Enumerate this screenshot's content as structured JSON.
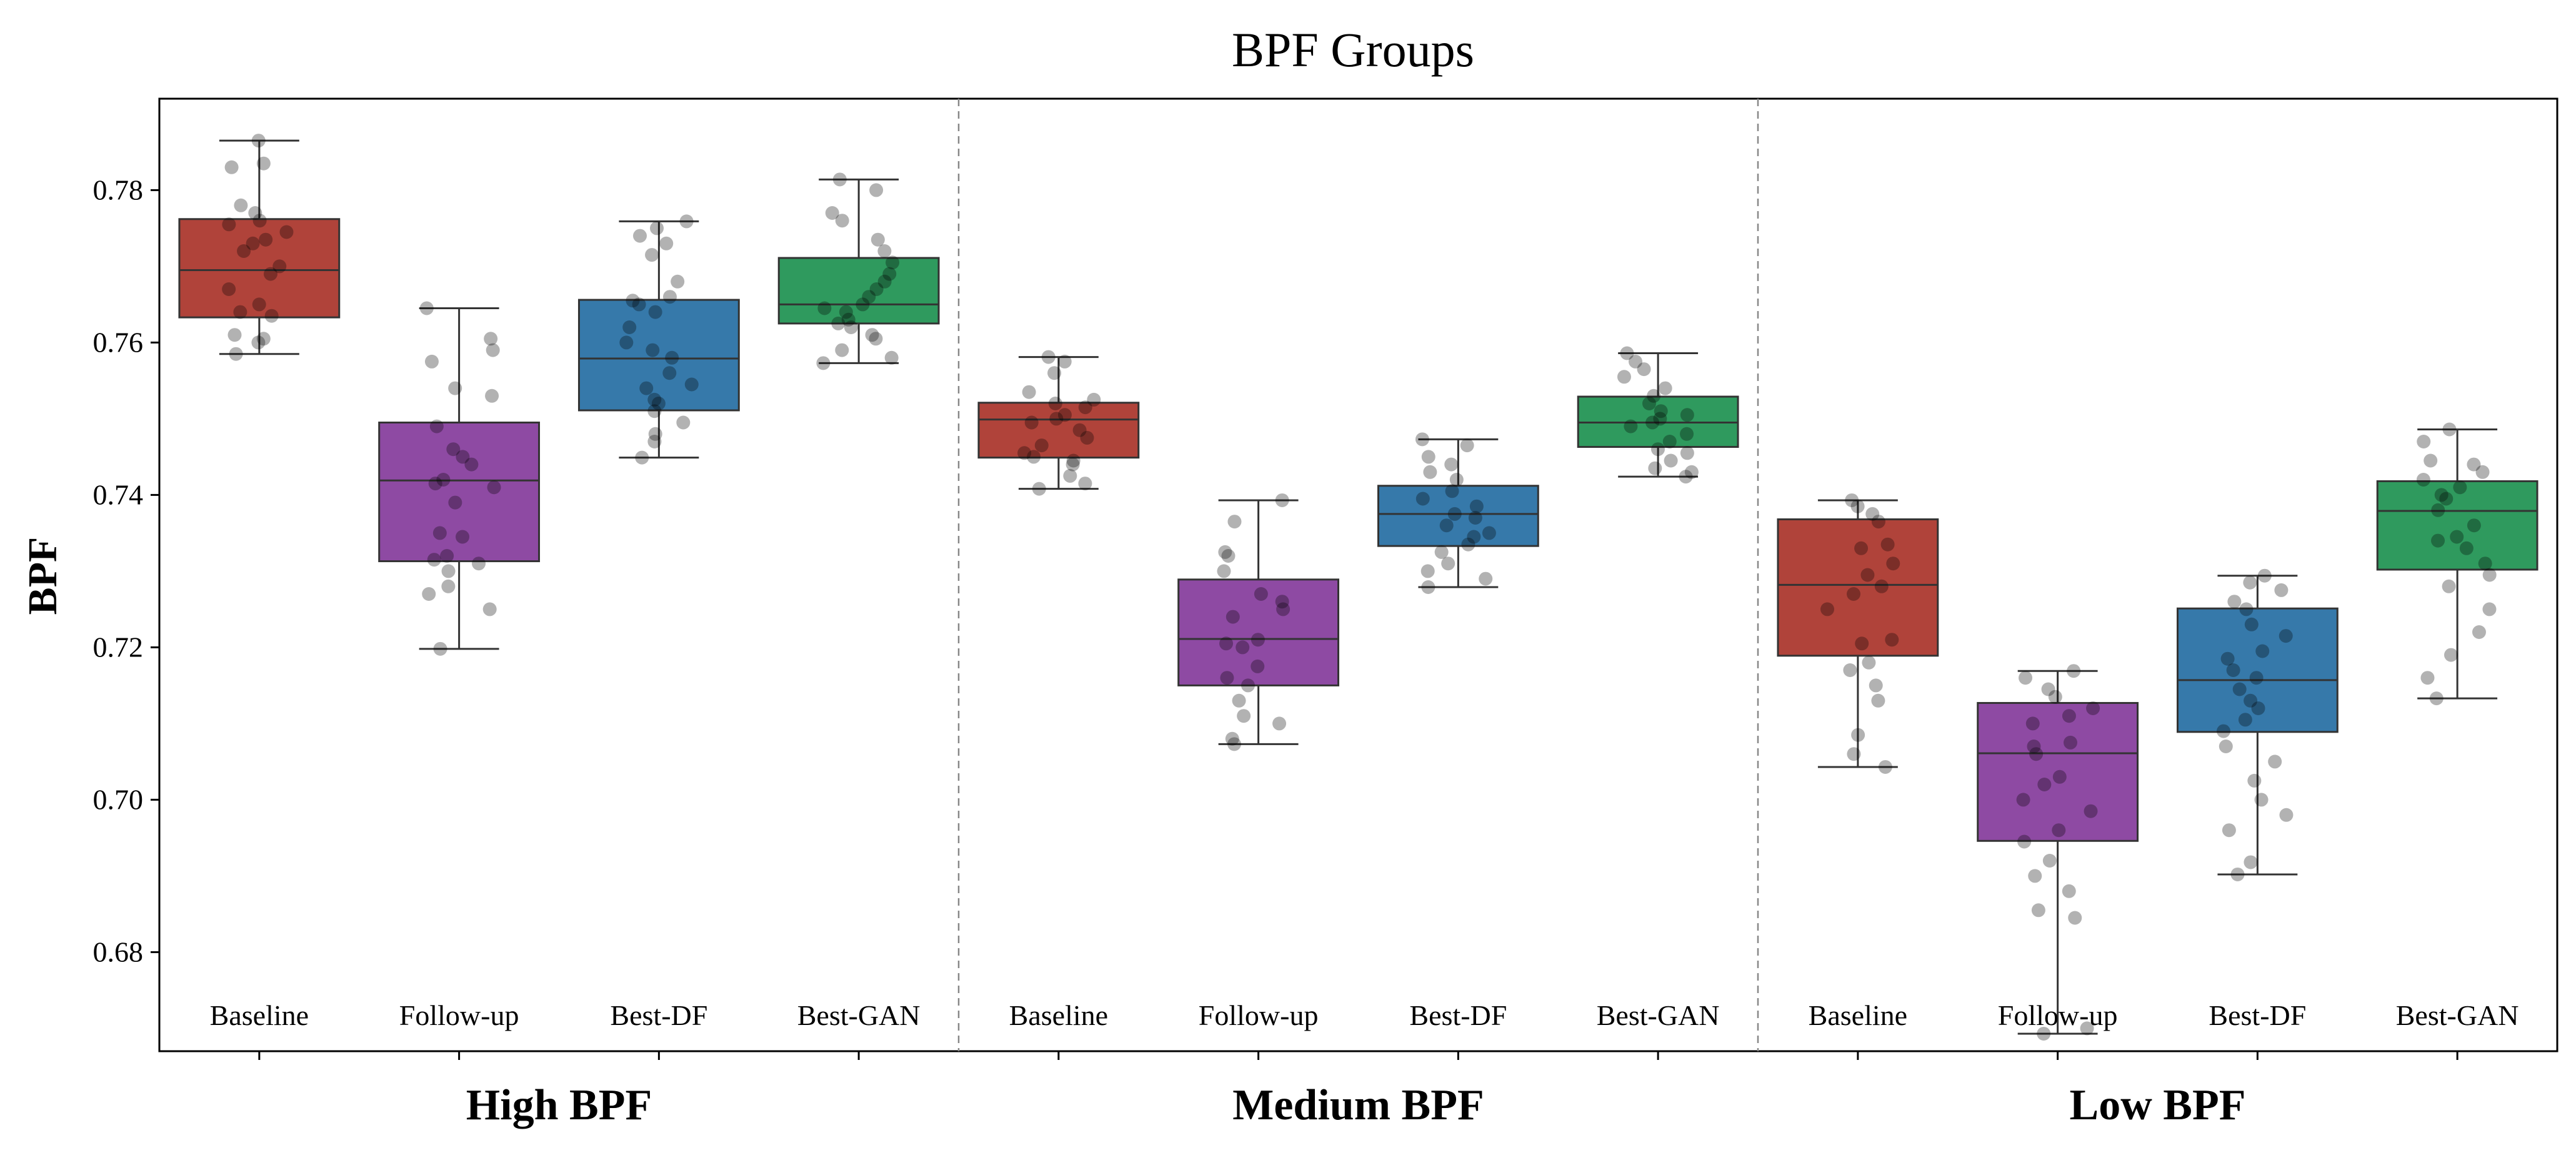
{
  "chart_data": {
    "type": "box",
    "title": "BPF Groups",
    "ylabel": "BPF",
    "xlabel": "",
    "ylim": [
      0.667,
      0.792
    ],
    "yticks": [
      "0.68",
      "0.70",
      "0.72",
      "0.74",
      "0.76",
      "0.78"
    ],
    "grid": false,
    "legend": "none",
    "categories": [
      "Baseline",
      "Follow-up",
      "Best-DF",
      "Best-GAN"
    ],
    "colors": {
      "Baseline": "#b0433a",
      "Follow-up": "#8e4aa3",
      "Best-DF": "#3679aa",
      "Best-GAN": "#2f9a5e"
    },
    "groups": [
      {
        "name": "High BPF",
        "boxes": [
          {
            "category": "Baseline",
            "whislo": 0.7585,
            "q1": 0.7633,
            "med": 0.7695,
            "q3": 0.7762,
            "whishi": 0.7865,
            "points": [
              0.7865,
              0.7835,
              0.783,
              0.778,
              0.777,
              0.776,
              0.7755,
              0.7745,
              0.7735,
              0.773,
              0.772,
              0.77,
              0.769,
              0.767,
              0.765,
              0.764,
              0.7635,
              0.761,
              0.7605,
              0.76,
              0.7585
            ]
          },
          {
            "category": "Follow-up",
            "whislo": 0.7198,
            "q1": 0.7313,
            "med": 0.7419,
            "q3": 0.7495,
            "whishi": 0.7645,
            "points": [
              0.7645,
              0.7605,
              0.759,
              0.7575,
              0.754,
              0.753,
              0.749,
              0.746,
              0.745,
              0.744,
              0.742,
              0.7415,
              0.741,
              0.739,
              0.735,
              0.7345,
              0.732,
              0.7315,
              0.731,
              0.73,
              0.728,
              0.727,
              0.725,
              0.7198
            ]
          },
          {
            "category": "Best-DF",
            "whislo": 0.7449,
            "q1": 0.7511,
            "med": 0.7579,
            "q3": 0.7656,
            "whishi": 0.7759,
            "points": [
              0.7759,
              0.775,
              0.774,
              0.773,
              0.7715,
              0.768,
              0.766,
              0.7655,
              0.765,
              0.764,
              0.762,
              0.76,
              0.759,
              0.758,
              0.756,
              0.7545,
              0.754,
              0.7525,
              0.752,
              0.751,
              0.7495,
              0.748,
              0.747,
              0.7449
            ]
          },
          {
            "category": "Best-GAN",
            "whislo": 0.7573,
            "q1": 0.7625,
            "med": 0.765,
            "q3": 0.7711,
            "whishi": 0.7814,
            "points": [
              0.7814,
              0.78,
              0.777,
              0.776,
              0.7735,
              0.772,
              0.7705,
              0.769,
              0.768,
              0.767,
              0.766,
              0.765,
              0.7645,
              0.764,
              0.763,
              0.7625,
              0.762,
              0.761,
              0.7605,
              0.759,
              0.758,
              0.7573
            ]
          }
        ]
      },
      {
        "name": "Medium BPF",
        "boxes": [
          {
            "category": "Baseline",
            "whislo": 0.7408,
            "q1": 0.7449,
            "med": 0.7499,
            "q3": 0.7521,
            "whishi": 0.7581,
            "points": [
              0.7581,
              0.7575,
              0.756,
              0.7535,
              0.7525,
              0.752,
              0.7515,
              0.7505,
              0.75,
              0.7495,
              0.7485,
              0.7475,
              0.7465,
              0.7455,
              0.745,
              0.7445,
              0.744,
              0.7425,
              0.7415,
              0.7408
            ]
          },
          {
            "category": "Follow-up",
            "whislo": 0.7073,
            "q1": 0.715,
            "med": 0.7211,
            "q3": 0.7289,
            "whishi": 0.7393,
            "points": [
              0.7393,
              0.7365,
              0.7325,
              0.732,
              0.73,
              0.727,
              0.726,
              0.725,
              0.724,
              0.721,
              0.7205,
              0.72,
              0.7175,
              0.716,
              0.715,
              0.713,
              0.711,
              0.71,
              0.708,
              0.7073
            ]
          },
          {
            "category": "Best-DF",
            "whislo": 0.7279,
            "q1": 0.7333,
            "med": 0.7375,
            "q3": 0.7412,
            "whishi": 0.7473,
            "points": [
              0.7473,
              0.7465,
              0.745,
              0.744,
              0.743,
              0.742,
              0.7405,
              0.7395,
              0.7385,
              0.7375,
              0.737,
              0.736,
              0.735,
              0.7345,
              0.7335,
              0.7325,
              0.731,
              0.73,
              0.729,
              0.7279
            ]
          },
          {
            "category": "Best-GAN",
            "whislo": 0.7424,
            "q1": 0.7463,
            "med": 0.7495,
            "q3": 0.7529,
            "whishi": 0.7586,
            "points": [
              0.7586,
              0.7575,
              0.7565,
              0.7555,
              0.754,
              0.753,
              0.752,
              0.751,
              0.7505,
              0.75,
              0.7495,
              0.749,
              0.748,
              0.747,
              0.746,
              0.7455,
              0.7445,
              0.7435,
              0.743,
              0.7424
            ]
          }
        ]
      },
      {
        "name": "Low BPF",
        "boxes": [
          {
            "category": "Baseline",
            "whislo": 0.7043,
            "q1": 0.7189,
            "med": 0.7282,
            "q3": 0.7368,
            "whishi": 0.7393,
            "points": [
              0.7393,
              0.7385,
              0.7375,
              0.7365,
              0.7335,
              0.733,
              0.731,
              0.7295,
              0.728,
              0.727,
              0.725,
              0.721,
              0.7205,
              0.718,
              0.717,
              0.715,
              0.713,
              0.7085,
              0.706,
              0.7043
            ]
          },
          {
            "category": "Follow-up",
            "whislo": 0.6693,
            "q1": 0.6946,
            "med": 0.7061,
            "q3": 0.7127,
            "whishi": 0.7169,
            "points": [
              0.7169,
              0.716,
              0.7145,
              0.7135,
              0.712,
              0.711,
              0.71,
              0.7075,
              0.707,
              0.706,
              0.703,
              0.702,
              0.7,
              0.6985,
              0.696,
              0.6945,
              0.692,
              0.69,
              0.688,
              0.6855,
              0.6845,
              0.6693,
              0.67
            ]
          },
          {
            "category": "Best-DF",
            "whislo": 0.6902,
            "q1": 0.7089,
            "med": 0.7157,
            "q3": 0.7251,
            "whishi": 0.7294,
            "points": [
              0.7294,
              0.7285,
              0.7275,
              0.726,
              0.725,
              0.723,
              0.7215,
              0.7195,
              0.7185,
              0.717,
              0.716,
              0.7145,
              0.713,
              0.712,
              0.7105,
              0.709,
              0.707,
              0.705,
              0.7025,
              0.7,
              0.698,
              0.696,
              0.6918,
              0.6902
            ]
          },
          {
            "category": "Best-GAN",
            "whislo": 0.7133,
            "q1": 0.7302,
            "med": 0.7379,
            "q3": 0.7418,
            "whishi": 0.7486,
            "points": [
              0.7486,
              0.747,
              0.7445,
              0.744,
              0.743,
              0.742,
              0.741,
              0.74,
              0.7395,
              0.738,
              0.736,
              0.7345,
              0.734,
              0.733,
              0.731,
              0.7295,
              0.728,
              0.725,
              0.722,
              0.719,
              0.716,
              0.7133
            ]
          }
        ]
      }
    ]
  }
}
